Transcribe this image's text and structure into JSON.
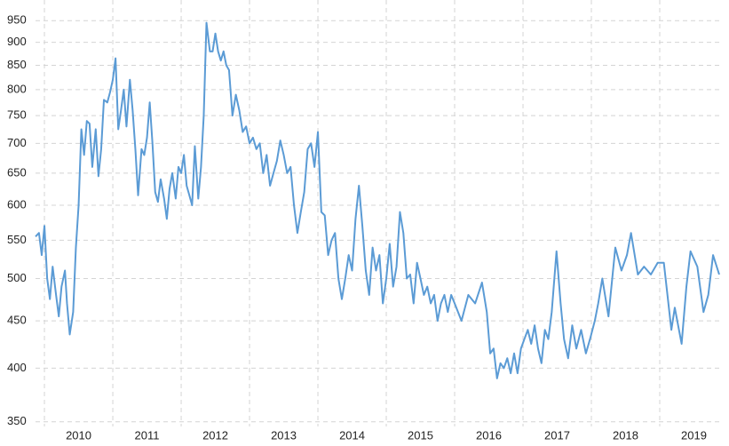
{
  "chart_data": {
    "type": "line",
    "color": "#5b9bd5",
    "log_y": true,
    "grid": true,
    "x": [
      2009.87,
      2009.92,
      2009.96,
      2010.0,
      2010.04,
      2010.08,
      2010.12,
      2010.17,
      2010.21,
      2010.25,
      2010.3,
      2010.33,
      2010.37,
      2010.42,
      2010.46,
      2010.5,
      2010.54,
      2010.58,
      2010.62,
      2010.66,
      2010.7,
      2010.75,
      2010.79,
      2010.83,
      2010.87,
      2010.92,
      2010.96,
      2011.0,
      2011.04,
      2011.08,
      2011.12,
      2011.16,
      2011.2,
      2011.25,
      2011.29,
      2011.33,
      2011.37,
      2011.42,
      2011.46,
      2011.5,
      2011.54,
      2011.58,
      2011.62,
      2011.66,
      2011.7,
      2011.75,
      2011.79,
      2011.83,
      2011.87,
      2011.92,
      2011.96,
      2012.0,
      2012.04,
      2012.08,
      2012.12,
      2012.16,
      2012.2,
      2012.25,
      2012.29,
      2012.33,
      2012.37,
      2012.42,
      2012.46,
      2012.5,
      2012.54,
      2012.58,
      2012.62,
      2012.66,
      2012.7,
      2012.75,
      2012.8,
      2012.85,
      2012.9,
      2012.95,
      2013.0,
      2013.05,
      2013.1,
      2013.15,
      2013.2,
      2013.25,
      2013.3,
      2013.35,
      2013.4,
      2013.45,
      2013.5,
      2013.55,
      2013.6,
      2013.65,
      2013.7,
      2013.75,
      2013.8,
      2013.85,
      2013.9,
      2013.95,
      2014.0,
      2014.05,
      2014.1,
      2014.15,
      2014.2,
      2014.25,
      2014.3,
      2014.35,
      2014.4,
      2014.45,
      2014.5,
      2014.55,
      2014.6,
      2014.65,
      2014.7,
      2014.75,
      2014.8,
      2014.85,
      2014.9,
      2014.95,
      2015.0,
      2015.05,
      2015.1,
      2015.15,
      2015.2,
      2015.25,
      2015.3,
      2015.35,
      2015.4,
      2015.45,
      2015.5,
      2015.55,
      2015.6,
      2015.65,
      2015.7,
      2015.75,
      2015.8,
      2015.85,
      2015.9,
      2015.95,
      2016.0,
      2016.1,
      2016.2,
      2016.3,
      2016.4,
      2016.47,
      2016.52,
      2016.57,
      2016.62,
      2016.67,
      2016.72,
      2016.77,
      2016.82,
      2016.87,
      2016.92,
      2016.97,
      2017.02,
      2017.07,
      2017.12,
      2017.17,
      2017.22,
      2017.27,
      2017.32,
      2017.37,
      2017.42,
      2017.49,
      2017.55,
      2017.6,
      2017.66,
      2017.72,
      2017.78,
      2017.85,
      2017.92,
      2017.98,
      2018.05,
      2018.1,
      2018.16,
      2018.25,
      2018.35,
      2018.44,
      2018.52,
      2018.58,
      2018.68,
      2018.77,
      2018.87,
      2018.97,
      2019.06,
      2019.17,
      2019.22,
      2019.32,
      2019.39,
      2019.45,
      2019.55,
      2019.64,
      2019.71,
      2019.78,
      2019.87
    ],
    "values": [
      555,
      560,
      530,
      570,
      500,
      475,
      515,
      480,
      455,
      490,
      510,
      470,
      435,
      460,
      540,
      600,
      725,
      680,
      740,
      735,
      660,
      725,
      645,
      690,
      780,
      775,
      795,
      820,
      865,
      725,
      760,
      800,
      730,
      820,
      760,
      690,
      615,
      690,
      680,
      710,
      775,
      700,
      620,
      605,
      640,
      610,
      580,
      625,
      650,
      610,
      660,
      650,
      680,
      630,
      615,
      600,
      695,
      610,
      660,
      750,
      945,
      880,
      880,
      920,
      880,
      860,
      880,
      850,
      840,
      750,
      790,
      760,
      720,
      730,
      700,
      710,
      690,
      700,
      650,
      680,
      630,
      650,
      670,
      705,
      680,
      650,
      660,
      600,
      560,
      590,
      620,
      690,
      700,
      660,
      720,
      590,
      585,
      530,
      550,
      560,
      500,
      475,
      500,
      530,
      510,
      580,
      630,
      570,
      510,
      480,
      540,
      510,
      530,
      470,
      500,
      545,
      490,
      515,
      590,
      560,
      500,
      505,
      470,
      520,
      500,
      480,
      490,
      470,
      480,
      450,
      470,
      480,
      460,
      480,
      470,
      450,
      480,
      470,
      495,
      460,
      415,
      420,
      390,
      405,
      400,
      410,
      395,
      415,
      395,
      420,
      430,
      440,
      425,
      445,
      420,
      405,
      440,
      430,
      460,
      535,
      470,
      430,
      410,
      445,
      420,
      440,
      415,
      430,
      450,
      470,
      500,
      455,
      540,
      510,
      530,
      560,
      505,
      515,
      505,
      520,
      520,
      440,
      465,
      425,
      490,
      535,
      515,
      460,
      480,
      530,
      505
    ],
    "xlim": [
      2009.35,
      2020.0
    ],
    "xticks": [
      2010,
      2011,
      2012,
      2013,
      2014,
      2015,
      2016,
      2017,
      2018,
      2019
    ],
    "ylim": [
      346,
      1000
    ],
    "yticks": [
      350,
      400,
      450,
      500,
      550,
      600,
      650,
      700,
      750,
      800,
      850,
      900,
      950
    ]
  }
}
